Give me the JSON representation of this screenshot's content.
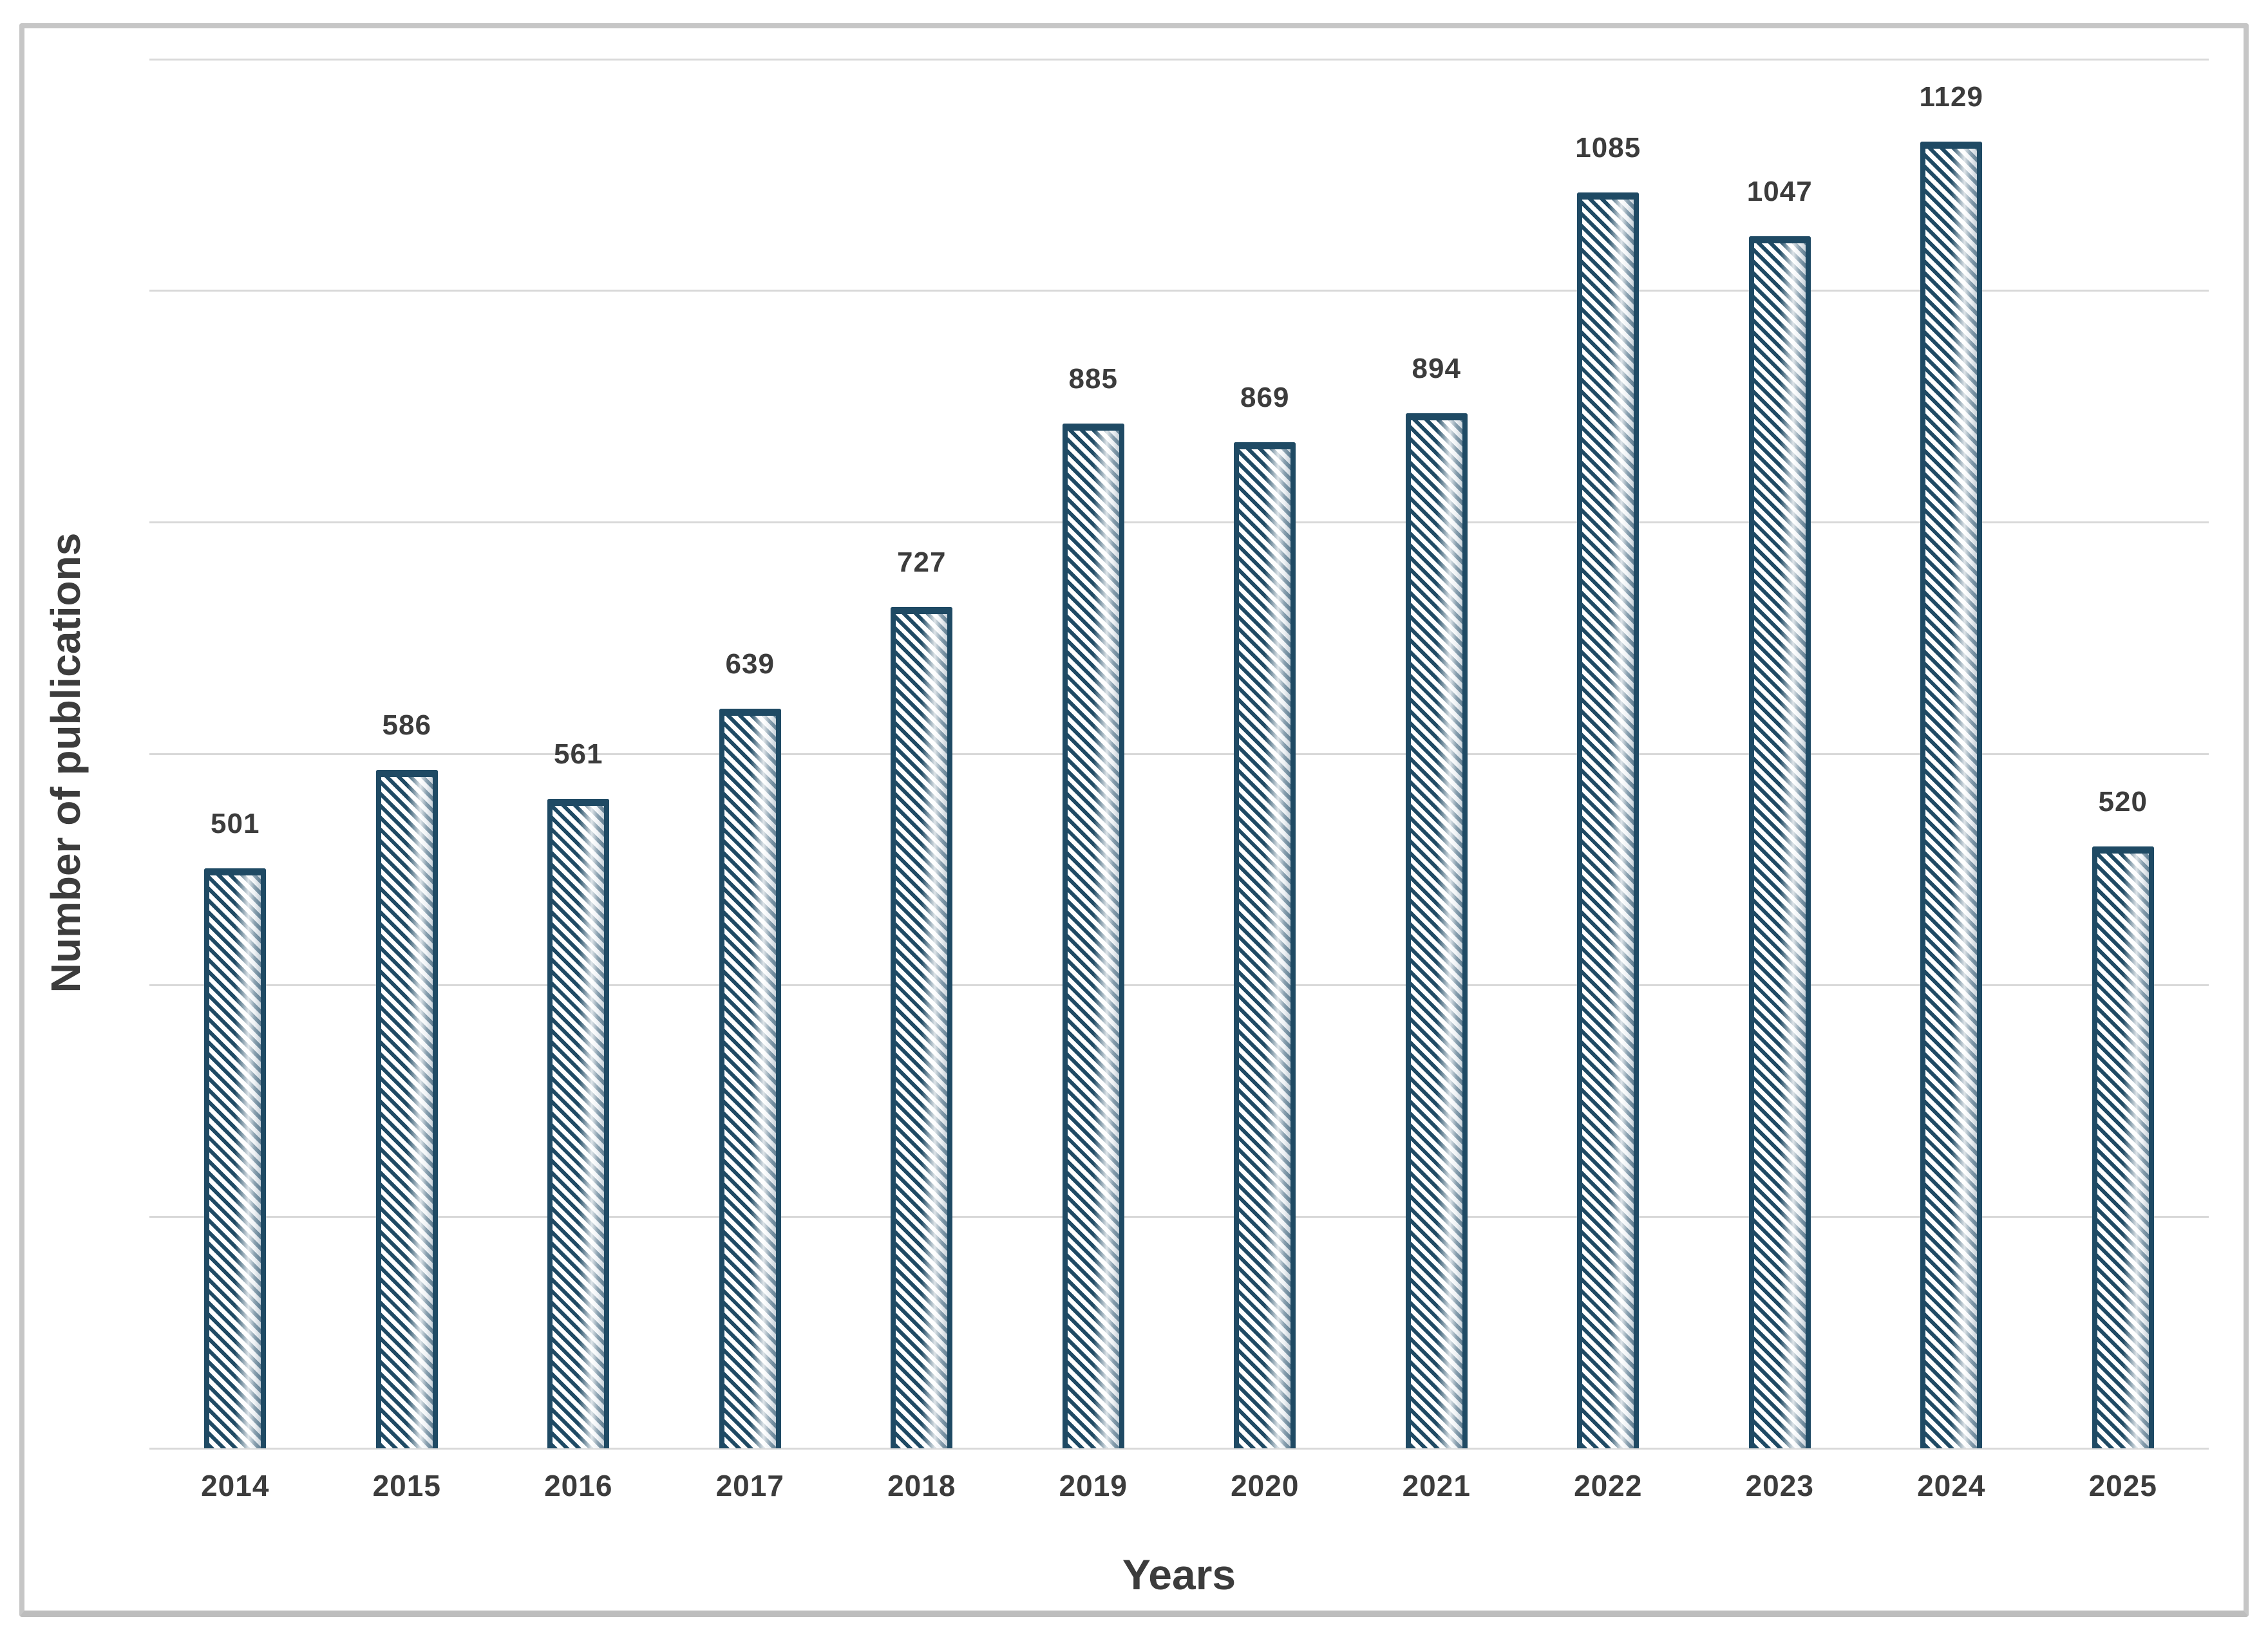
{
  "chart_data": {
    "type": "bar",
    "title": "",
    "xlabel": "Years",
    "ylabel": "Number of publications",
    "categories": [
      "2014",
      "2015",
      "2016",
      "2017",
      "2018",
      "2019",
      "2020",
      "2021",
      "2022",
      "2023",
      "2024",
      "2025"
    ],
    "values": [
      501,
      586,
      561,
      639,
      727,
      885,
      869,
      894,
      1085,
      1047,
      1129,
      520
    ],
    "value_labels_visible": true,
    "ylim": [
      0,
      1200
    ],
    "gridline_step": 200,
    "grid": true,
    "y_tick_labels_visible": false,
    "legend_position": "none",
    "style": {
      "hatch_direction": "diagonal-backslash",
      "bar_stripe_color": "#1F4A64",
      "bar_border_color": "#1F4A64",
      "bar_fill_color": "#FFFFFF",
      "label_color": "#3C3C3C",
      "gridline_color": "#D9D9D9",
      "frame_border_color": "#C6C6C6",
      "background_color": "#FFFFFF"
    }
  }
}
